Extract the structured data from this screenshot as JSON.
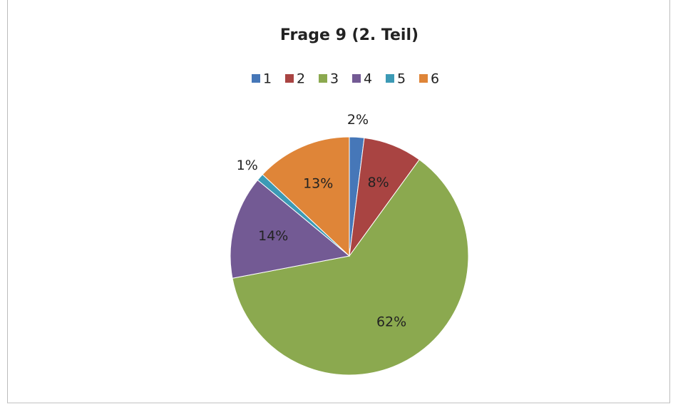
{
  "chart_data": {
    "type": "pie",
    "title": "Frage 9 (2. Teil)",
    "categories": [
      "1",
      "2",
      "3",
      "4",
      "5",
      "6"
    ],
    "values": [
      2,
      8,
      62,
      14,
      1,
      13
    ],
    "value_labels": [
      "2%",
      "8%",
      "62%",
      "14%",
      "1%",
      "13%"
    ],
    "colors": [
      "#4677b8",
      "#a94442",
      "#8ba94f",
      "#735a94",
      "#3c9ab5",
      "#df8538"
    ],
    "legend": "top"
  }
}
